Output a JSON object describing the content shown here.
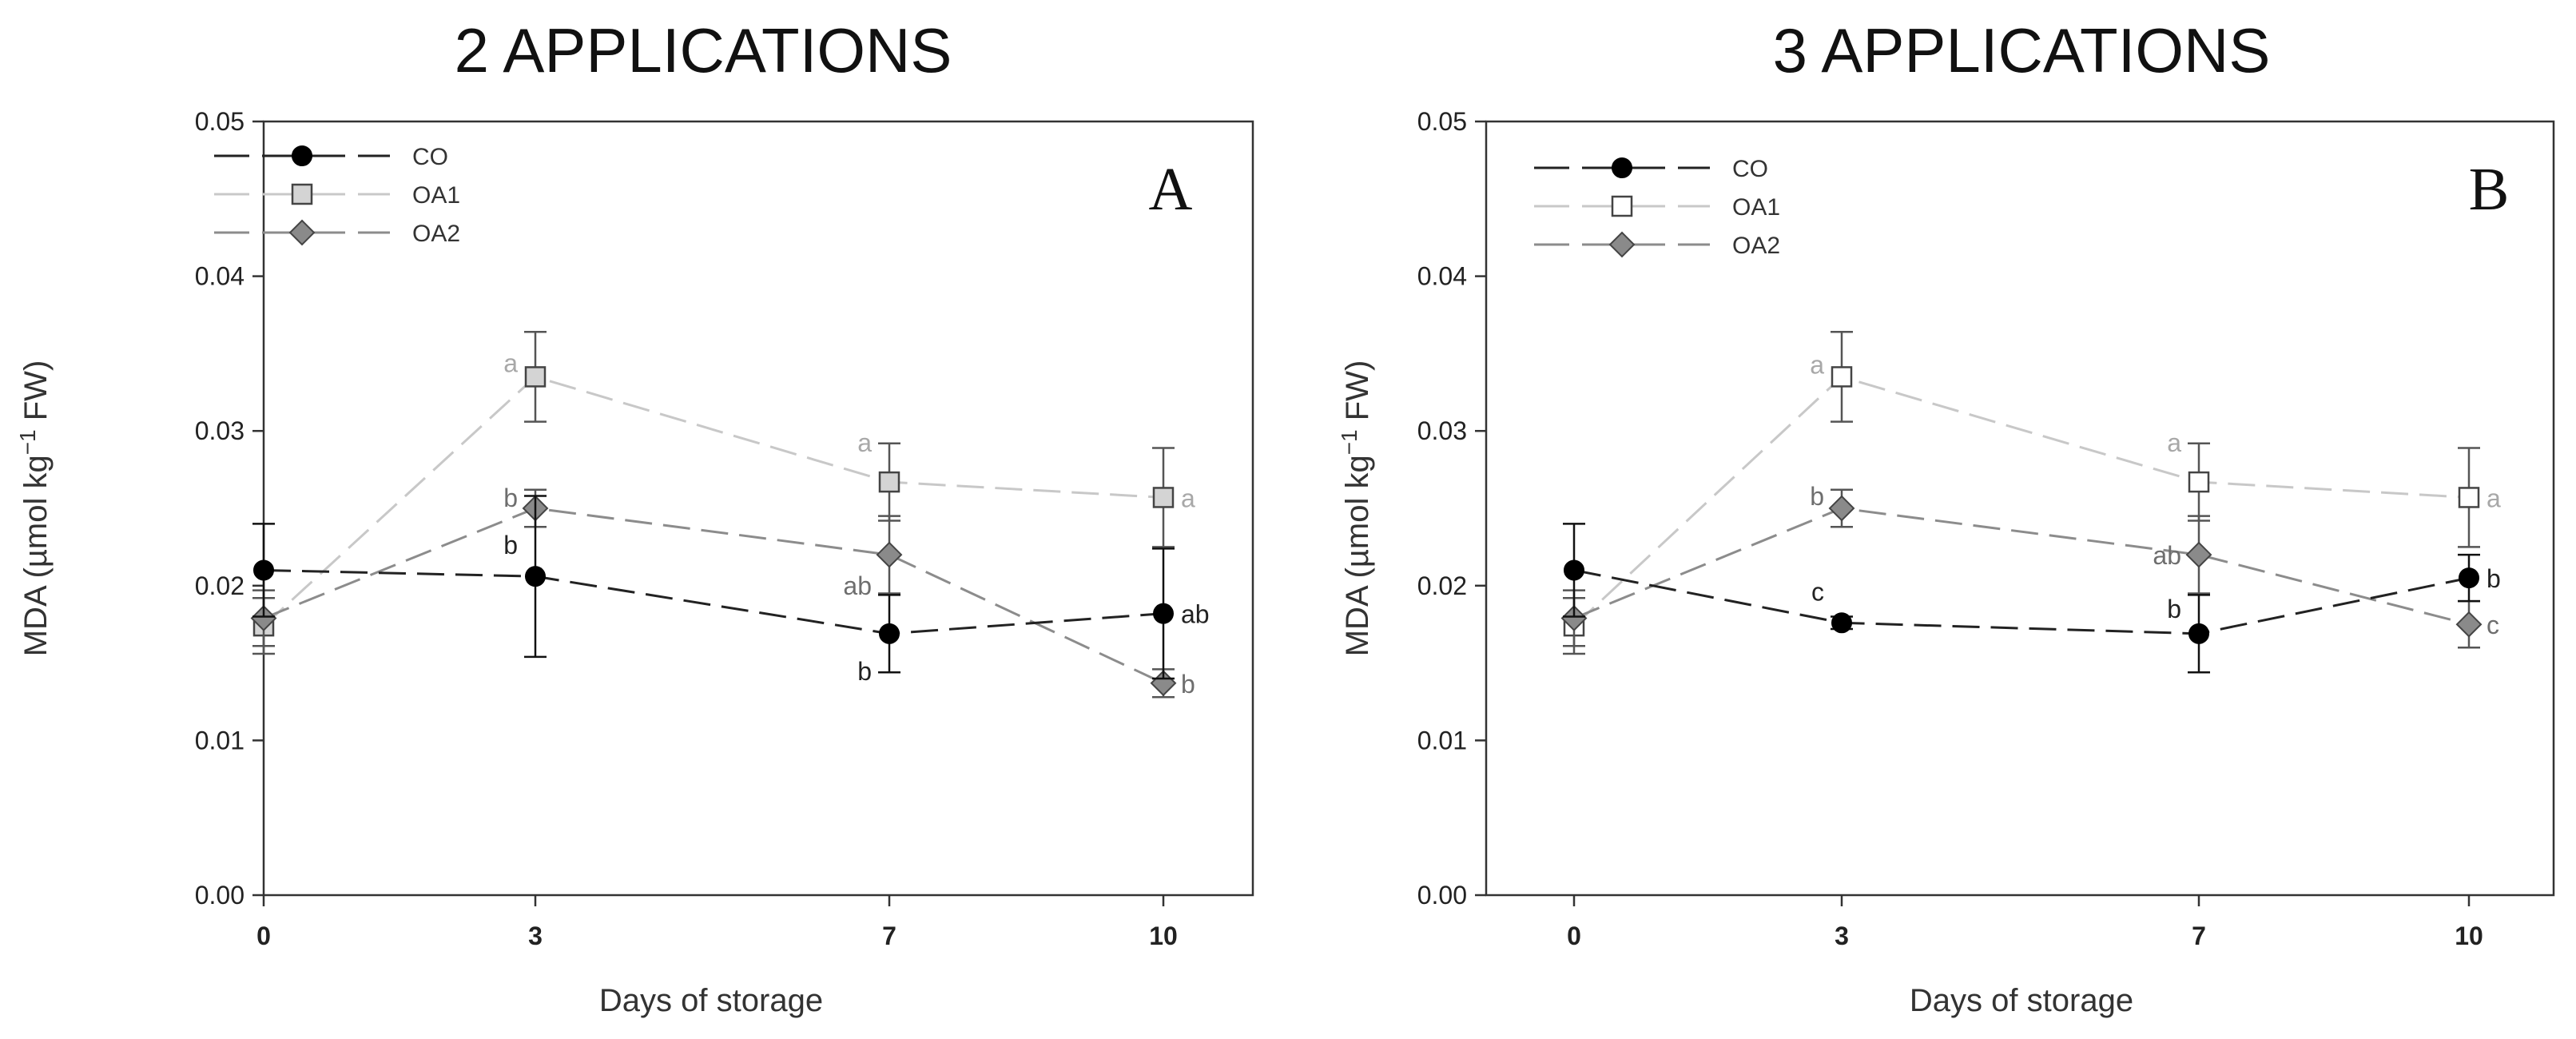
{
  "chart_data": [
    {
      "type": "line",
      "title": "2 APPLICATIONS",
      "panel_label": "A",
      "xlabel": "Days of storage",
      "ylabel_parts": [
        "MDA (µmol kg",
        "−1",
        " FW)"
      ],
      "categories": [
        "0",
        "3",
        "7",
        "10"
      ],
      "x": [
        0,
        3,
        7,
        10
      ],
      "ylim": [
        0,
        0.05
      ],
      "yticks": [
        "0.00",
        "0.01",
        "0.02",
        "0.03",
        "0.04",
        "0.05"
      ],
      "legend_position": "top-left",
      "grid": false,
      "series": [
        {
          "name": "CO",
          "marker": "circle",
          "fill": "#000000",
          "line_color": "#222222",
          "label_color": "#222222",
          "values": [
            0.021,
            0.0206,
            0.0169,
            0.0182
          ],
          "errors": [
            0.003,
            0.0052,
            0.0025,
            0.0042
          ],
          "labels": [
            "",
            "b",
            "b",
            "ab"
          ]
        },
        {
          "name": "OA1",
          "marker": "square",
          "fill": "#d4d4d4",
          "line_color": "#c8c8c8",
          "label_color": "#a8a8a8",
          "values": [
            0.0174,
            0.0335,
            0.0267,
            0.0257
          ],
          "errors": [
            0.0018,
            0.0029,
            0.0025,
            0.0032
          ],
          "labels": [
            "",
            "a",
            "a",
            "a"
          ]
        },
        {
          "name": "OA2",
          "marker": "diamond",
          "fill": "#8a8a8a",
          "line_color": "#8c8c8c",
          "label_color": "#6e6e6e",
          "values": [
            0.0179,
            0.025,
            0.022,
            0.0137
          ],
          "errors": [
            0.0018,
            0.0012,
            0.0025,
            0.0009
          ],
          "labels": [
            "",
            "b",
            "ab",
            "b"
          ]
        }
      ]
    },
    {
      "type": "line",
      "title": "3 APPLICATIONS",
      "panel_label": "B",
      "xlabel": "Days of storage",
      "ylabel_parts": [
        "MDA (µmol kg",
        "−1",
        " FW)"
      ],
      "categories": [
        "0",
        "3",
        "7",
        "10"
      ],
      "x": [
        0,
        3,
        7,
        10
      ],
      "ylim": [
        0,
        0.05
      ],
      "yticks": [
        "0.00",
        "0.01",
        "0.02",
        "0.03",
        "0.04",
        "0.05"
      ],
      "legend_position": "top-left",
      "grid": false,
      "series": [
        {
          "name": "CO",
          "marker": "circle",
          "fill": "#000000",
          "line_color": "#222222",
          "label_color": "#222222",
          "values": [
            0.021,
            0.0176,
            0.0169,
            0.0205
          ],
          "errors": [
            0.003,
            0.0004,
            0.0025,
            0.0015
          ],
          "labels": [
            "",
            "c",
            "b",
            "b"
          ]
        },
        {
          "name": "OA1",
          "marker": "square",
          "fill": "#ffffff",
          "line_color": "#c8c8c8",
          "label_color": "#a8a8a8",
          "values": [
            0.0174,
            0.0335,
            0.0267,
            0.0257
          ],
          "errors": [
            0.0018,
            0.0029,
            0.0025,
            0.0032
          ],
          "labels": [
            "",
            "a",
            "a",
            "a"
          ]
        },
        {
          "name": "OA2",
          "marker": "diamond",
          "fill": "#8a8a8a",
          "line_color": "#8c8c8c",
          "label_color": "#6e6e6e",
          "values": [
            0.0179,
            0.025,
            0.022,
            0.0175
          ],
          "errors": [
            0.0018,
            0.0012,
            0.0025,
            0.0015
          ],
          "labels": [
            "",
            "b",
            "ab",
            "c"
          ]
        }
      ]
    }
  ]
}
